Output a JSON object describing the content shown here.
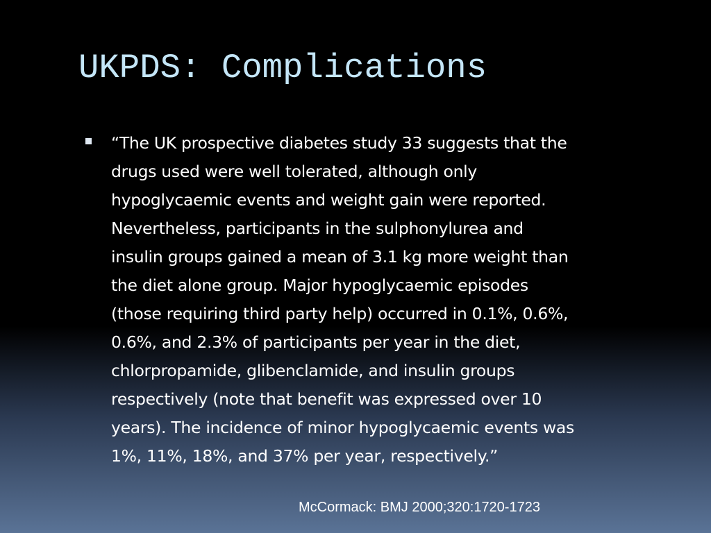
{
  "slide": {
    "title": "UKPDS: Complications",
    "bullet_lines": [
      "“The UK prospective diabetes study 33 suggests that the",
      "drugs used were well tolerated, although only",
      "hypoglycaemic events and weight gain were reported.",
      "Nevertheless, participants in the sulphonylurea and",
      "insulin groups gained a mean of 3.1 kg more weight than",
      "the diet alone group. Major hypoglycaemic episodes",
      "(those requiring third party help) occurred in 0.1%, 0.6%,",
      "0.6%, and 2.3% of participants per year in the diet,",
      "chlorpropamide, glibenclamide, and insulin groups",
      "respectively (note that benefit was expressed over 10",
      "years). The incidence of minor hypoglycaemic events was",
      "1%, 11%, 18%, and 37% per year, respectively.”"
    ],
    "citation": "McCormack: BMJ 2000;320:1720-1723"
  }
}
